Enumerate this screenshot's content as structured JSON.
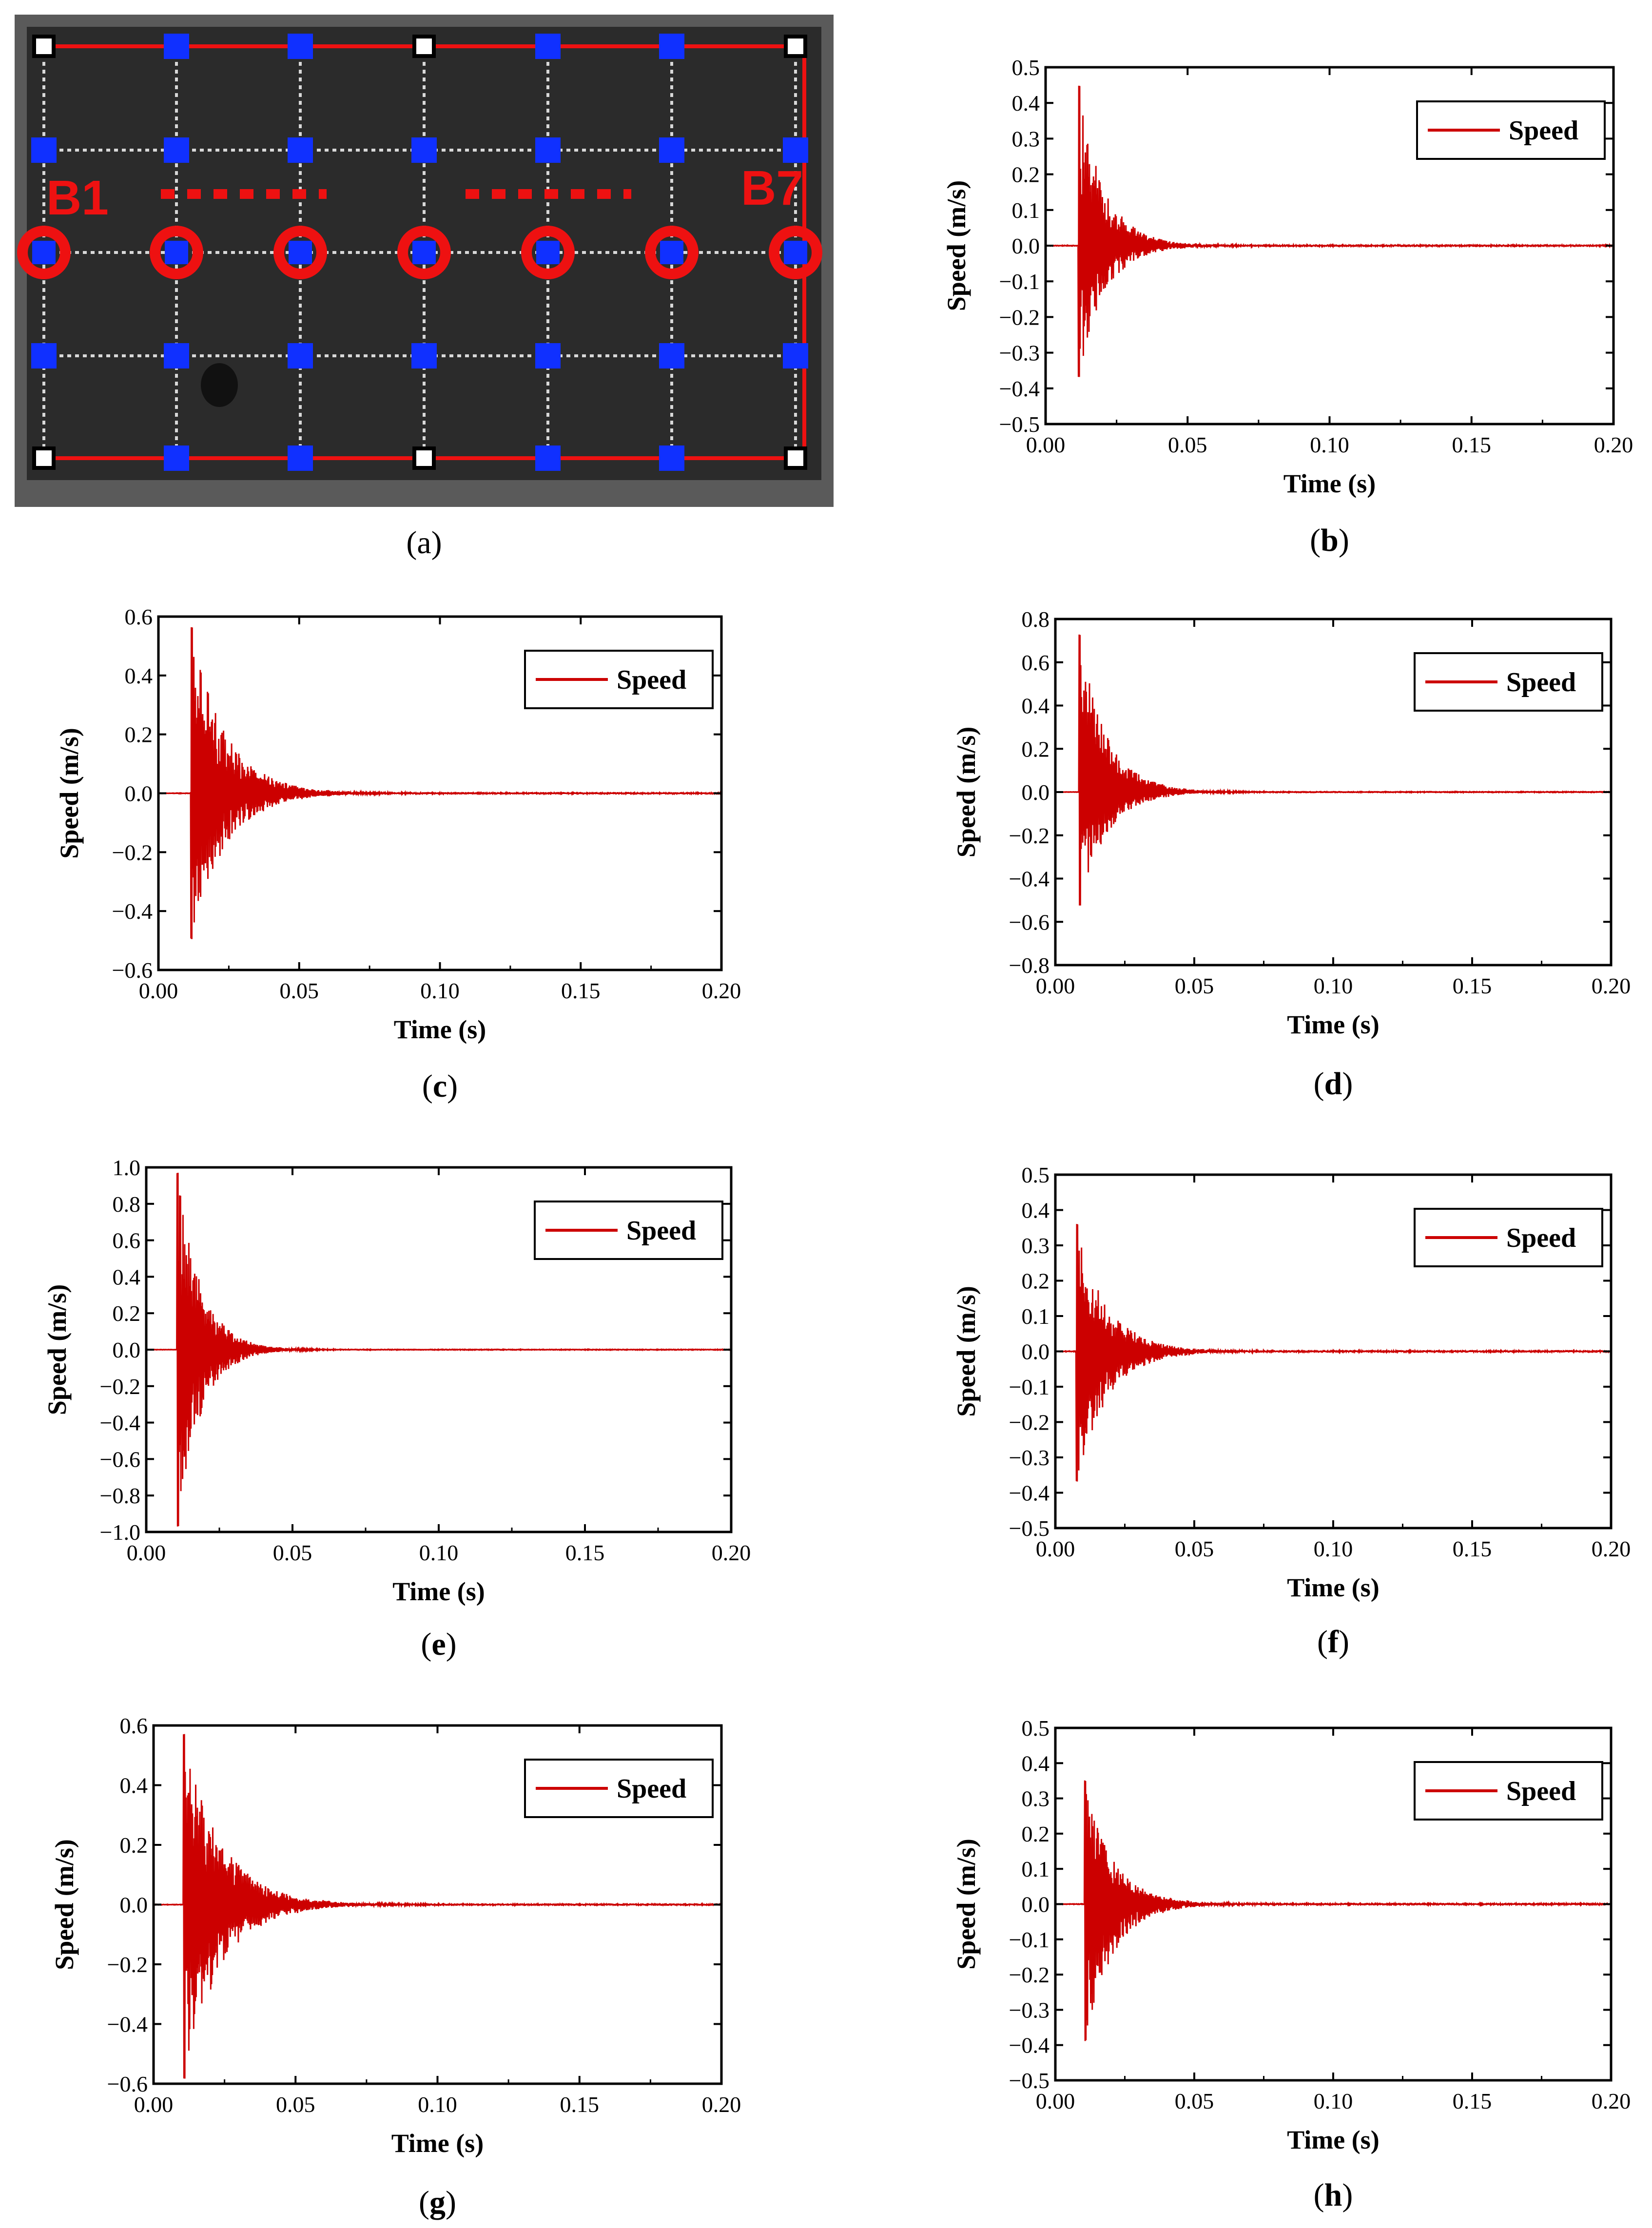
{
  "figure": {
    "panel_a": {
      "caption": "a",
      "label_left": "B1",
      "label_right": "B7",
      "colors": {
        "background": "#2b2b2b",
        "grid": "#d8d8d8",
        "sensor": "#1030ff",
        "marker": "#ee1111",
        "corner": "#ffffff"
      }
    }
  },
  "chart_data": [
    {
      "id": "b",
      "caption": "b",
      "type": "line",
      "series_name": "Speed",
      "xlabel": "Time (s)",
      "ylabel": "Speed (m/s)",
      "xlim": [
        0,
        0.2
      ],
      "ylim": [
        -0.5,
        0.5
      ],
      "xticks": [
        "0.00",
        "0.05",
        "0.10",
        "0.15",
        "0.20"
      ],
      "yticks": [
        "0.5",
        "0.4",
        "0.3",
        "0.2",
        "0.1",
        "0.0",
        "-0.1",
        "-0.2",
        "-0.3",
        "-0.4",
        "-0.5"
      ],
      "onset": 0.0115,
      "peak_pos": 0.46,
      "peak_neg": -0.38,
      "decay": 0.009,
      "color": "#cc0000",
      "legend_loc": "top-right"
    },
    {
      "id": "c",
      "caption": "c",
      "type": "line",
      "series_name": "Speed",
      "xlabel": "Time (s)",
      "ylabel": "Speed (m/s)",
      "xlim": [
        0,
        0.2
      ],
      "ylim": [
        -0.6,
        0.6
      ],
      "xticks": [
        "0.00",
        "0.05",
        "0.10",
        "0.15",
        "0.20"
      ],
      "yticks": [
        "0.6",
        "0.4",
        "0.2",
        "0.0",
        "-0.2",
        "-0.4",
        "-0.6"
      ],
      "onset": 0.0115,
      "peak_pos": 0.58,
      "peak_neg": -0.51,
      "decay": 0.012,
      "color": "#cc0000",
      "legend_loc": "top-right"
    },
    {
      "id": "d",
      "caption": "d",
      "type": "line",
      "series_name": "Speed",
      "xlabel": "Time (s)",
      "ylabel": "Speed (m/s)",
      "xlim": [
        0,
        0.2
      ],
      "ylim": [
        -0.8,
        0.8
      ],
      "xticks": [
        "0.00",
        "0.05",
        "0.10",
        "0.15",
        "0.20"
      ],
      "yticks": [
        "0.8",
        "0.6",
        "0.4",
        "0.2",
        "0.0",
        "-0.2",
        "-0.4",
        "-0.6",
        "-0.8"
      ],
      "onset": 0.0085,
      "peak_pos": 0.75,
      "peak_neg": -0.54,
      "decay": 0.01,
      "color": "#cc0000",
      "legend_loc": "top-right"
    },
    {
      "id": "e",
      "caption": "e",
      "type": "line",
      "series_name": "Speed",
      "xlabel": "Time (s)",
      "ylabel": "Speed (m/s)",
      "xlim": [
        0,
        0.2
      ],
      "ylim": [
        -1.0,
        1.0
      ],
      "xticks": [
        "0.00",
        "0.05",
        "0.10",
        "0.15",
        "0.20"
      ],
      "yticks": [
        "1.0",
        "0.8",
        "0.6",
        "0.4",
        "0.2",
        "0.0",
        "-0.2",
        "-0.4",
        "-0.6",
        "-0.8",
        "-1.0"
      ],
      "onset": 0.0105,
      "peak_pos": 1.0,
      "peak_neg": -1.0,
      "decay": 0.008,
      "color": "#cc0000",
      "legend_loc": "top-right"
    },
    {
      "id": "f",
      "caption": "f",
      "type": "line",
      "series_name": "Speed",
      "xlabel": "Time (s)",
      "ylabel": "Speed (m/s)",
      "xlim": [
        0,
        0.2
      ],
      "ylim": [
        -0.5,
        0.5
      ],
      "xticks": [
        "0.00",
        "0.05",
        "0.10",
        "0.15",
        "0.20"
      ],
      "yticks": [
        "0.5",
        "0.4",
        "0.3",
        "0.2",
        "0.1",
        "0.0",
        "-0.1",
        "-0.2",
        "-0.3",
        "-0.4",
        "-0.5"
      ],
      "onset": 0.0075,
      "peak_pos": 0.37,
      "peak_neg": -0.38,
      "decay": 0.011,
      "color": "#cc0000",
      "legend_loc": "top-right"
    },
    {
      "id": "g",
      "caption": "g",
      "type": "line",
      "series_name": "Speed",
      "xlabel": "Time (s)",
      "ylabel": "Speed (m/s)",
      "xlim": [
        0,
        0.2
      ],
      "ylim": [
        -0.6,
        0.6
      ],
      "xticks": [
        "0.00",
        "0.05",
        "0.10",
        "0.15",
        "0.20"
      ],
      "yticks": [
        "0.6",
        "0.4",
        "0.2",
        "0.0",
        "-0.2",
        "-0.4",
        "-0.6"
      ],
      "onset": 0.0105,
      "peak_pos": 0.59,
      "peak_neg": -0.6,
      "decay": 0.013,
      "color": "#cc0000",
      "legend_loc": "top-right"
    },
    {
      "id": "h",
      "caption": "h",
      "type": "line",
      "series_name": "Speed",
      "xlabel": "Time (s)",
      "ylabel": "Speed (m/s)",
      "xlim": [
        0,
        0.2
      ],
      "ylim": [
        -0.5,
        0.5
      ],
      "xticks": [
        "0.00",
        "0.05",
        "0.10",
        "0.15",
        "0.20"
      ],
      "yticks": [
        "0.5",
        "0.4",
        "0.3",
        "0.2",
        "0.1",
        "0.0",
        "-0.1",
        "-0.2",
        "-0.3",
        "-0.4",
        "-0.5"
      ],
      "onset": 0.0105,
      "peak_pos": 0.36,
      "peak_neg": -0.4,
      "decay": 0.01,
      "color": "#cc0000",
      "legend_loc": "top-right"
    }
  ]
}
